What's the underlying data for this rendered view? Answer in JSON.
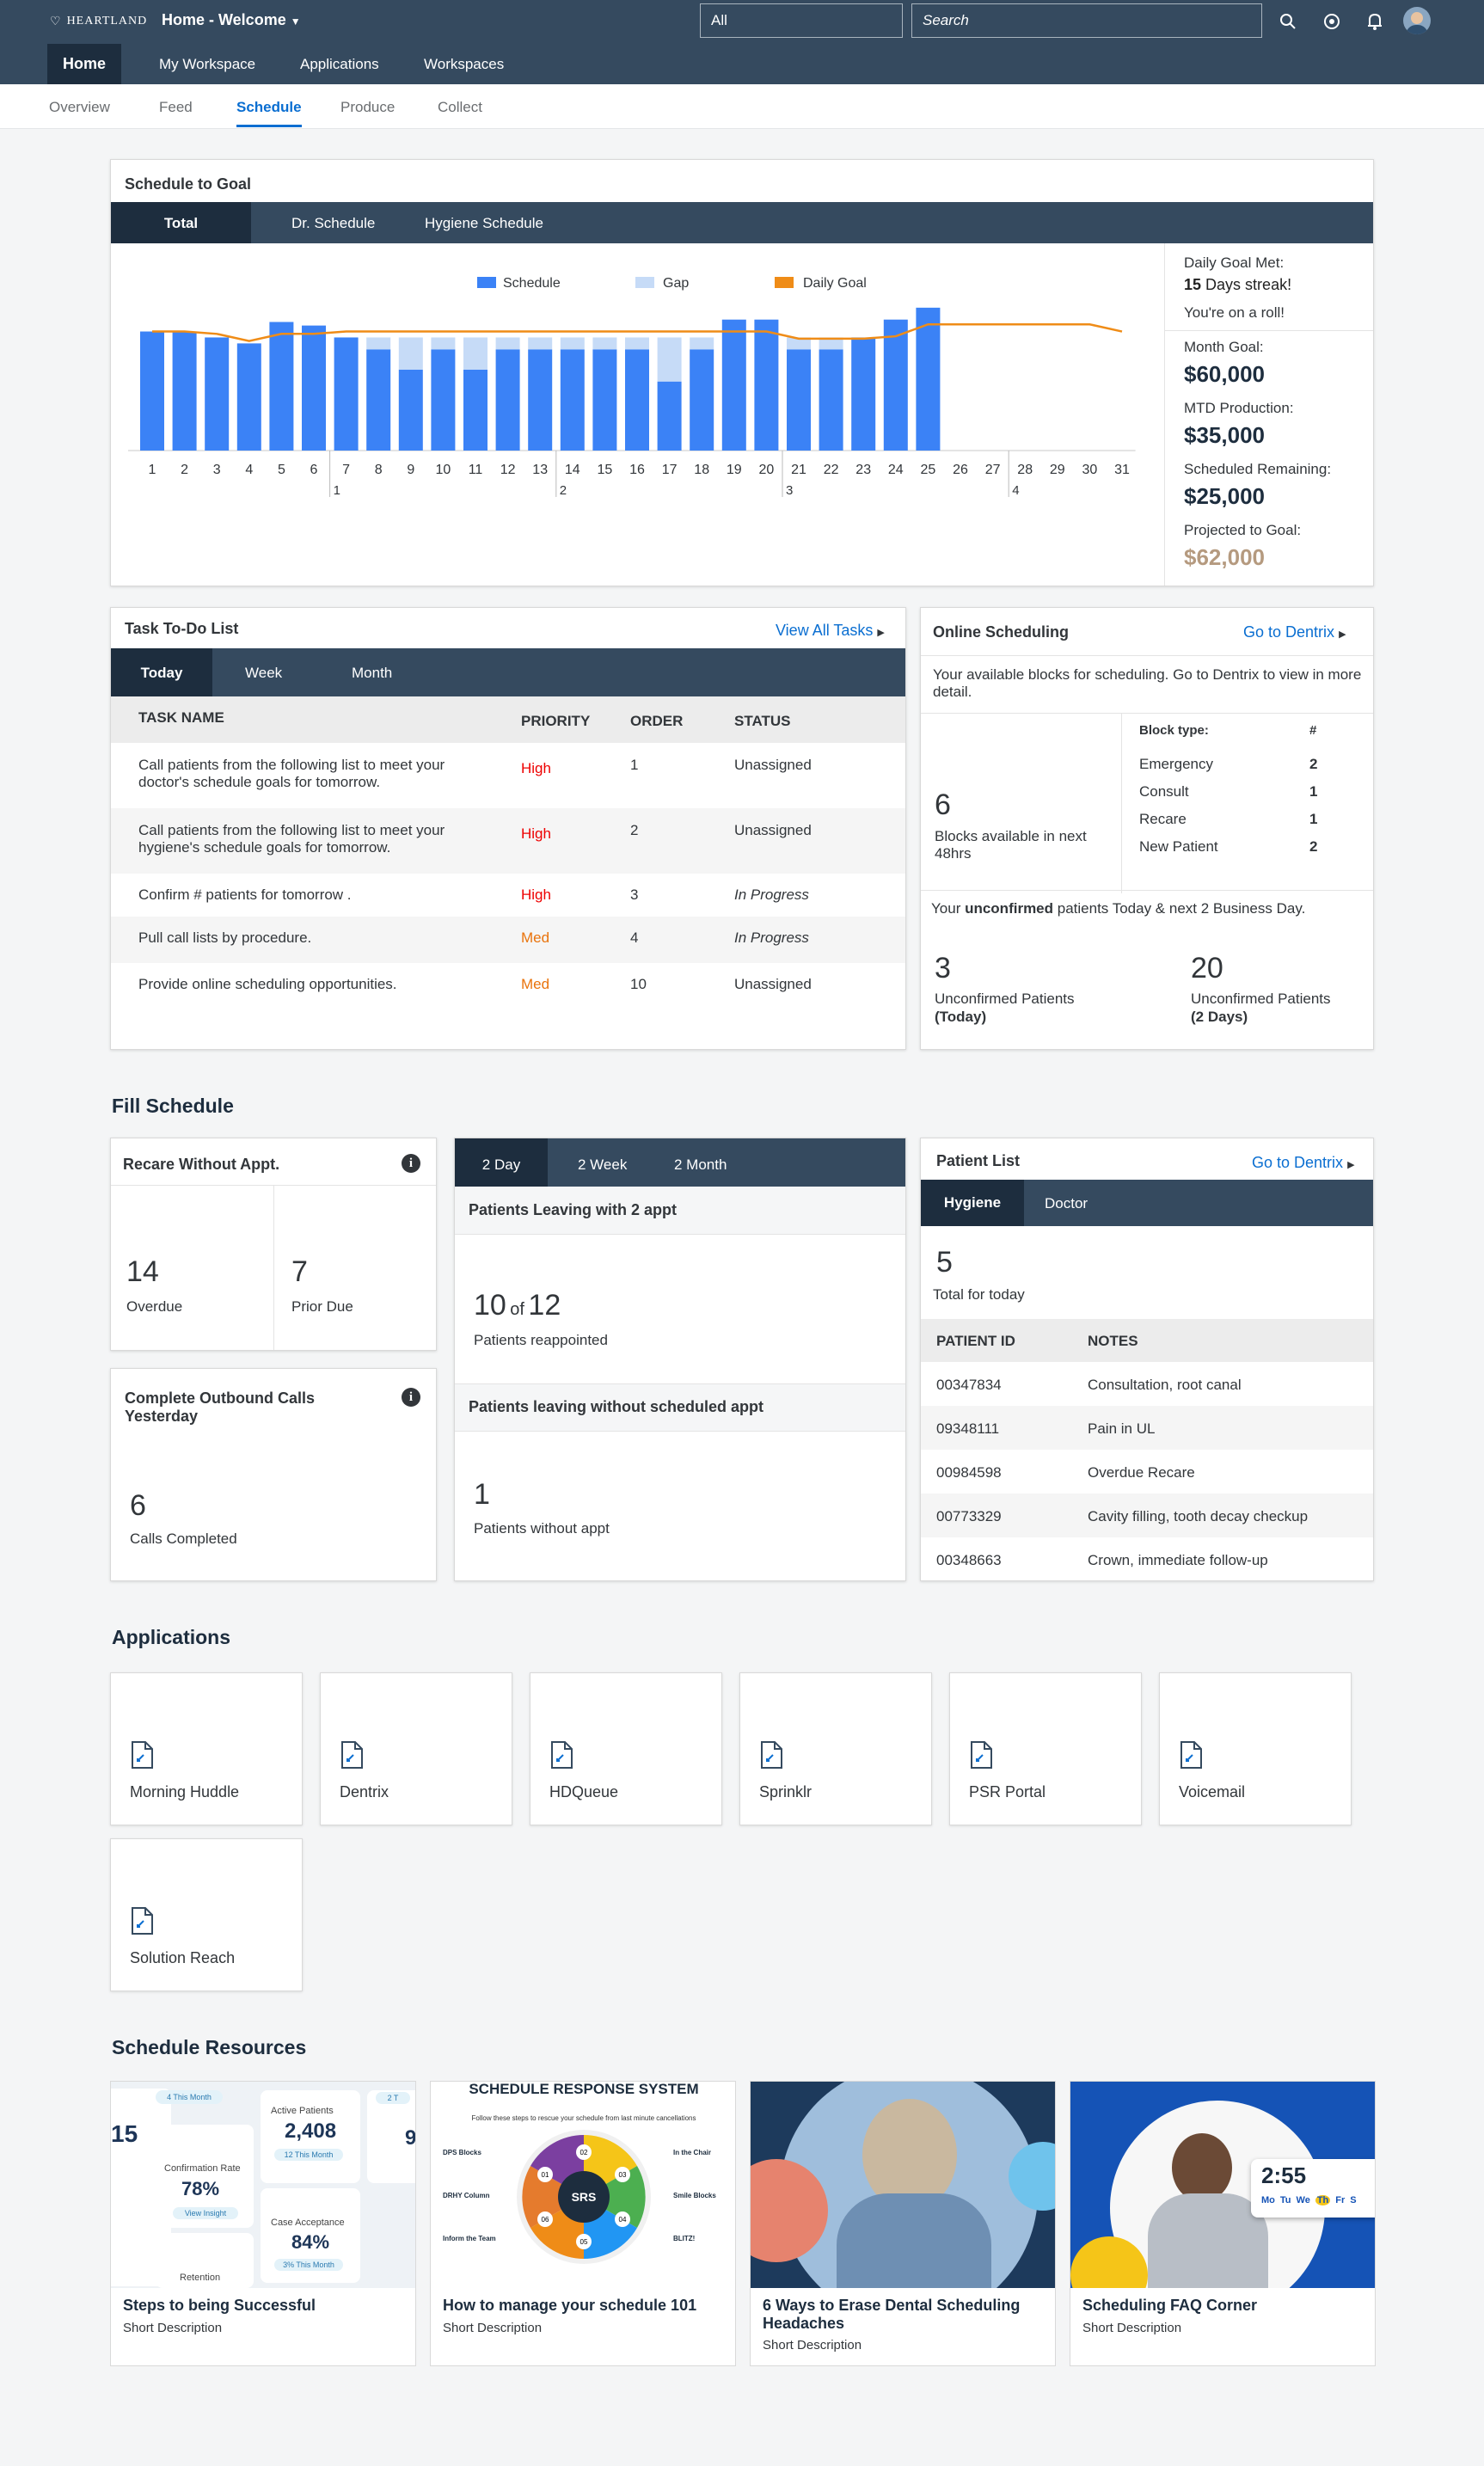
{
  "shell": {
    "logo": "HEARTLAND",
    "title": "Home - Welcome",
    "select": "All",
    "search_placeholder": "Search"
  },
  "nav": {
    "items": [
      "Home",
      "My Workspace",
      "Applications",
      "Workspaces"
    ]
  },
  "subnav": {
    "items": [
      "Overview",
      "Feed",
      "Schedule",
      "Produce",
      "Collect"
    ]
  },
  "goal": {
    "title": "Schedule to Goal",
    "tabs": [
      "Total",
      "Dr. Schedule",
      "Hygiene Schedule"
    ],
    "side": {
      "daily_label": "Daily Goal Met:",
      "streak_num": "15",
      "streak_text": "Days streak!",
      "roll": "You're on a roll!",
      "month_label": "Month Goal:",
      "month_val": "$60,000",
      "mtd_label": "MTD Production:",
      "mtd_val": "$35,000",
      "rem_label": "Scheduled Remaining:",
      "rem_val": "$25,000",
      "proj_label": "Projected to Goal:",
      "proj_val": "$62,000"
    }
  },
  "colors": {
    "schedule": "#3b82f6",
    "gap": "#c6dbf7",
    "goal": "#ef8c17",
    "shell": "#354a5f"
  },
  "chart_data": {
    "type": "bar",
    "title": "Schedule to Goal",
    "legend": [
      "Schedule",
      "Gap",
      "Daily Goal"
    ],
    "categories": [
      "1",
      "2",
      "3",
      "4",
      "5",
      "6",
      "7",
      "8",
      "9",
      "10",
      "11",
      "12",
      "13",
      "14",
      "15",
      "16",
      "17",
      "18",
      "19",
      "20",
      "21",
      "22",
      "23",
      "24",
      "25",
      "26",
      "27",
      "28",
      "29",
      "30",
      "31"
    ],
    "week_labels": [
      "1",
      "2",
      "3",
      "4"
    ],
    "series": [
      {
        "name": "Schedule",
        "values": [
          100,
          100,
          95,
          90,
          108,
          105,
          95,
          85,
          68,
          85,
          68,
          85,
          85,
          85,
          85,
          85,
          58,
          85,
          110,
          110,
          85,
          85,
          95,
          110,
          120,
          null,
          null,
          null,
          null,
          null,
          null
        ]
      },
      {
        "name": "Gap",
        "values": [
          0,
          0,
          0,
          0,
          0,
          0,
          0,
          10,
          27,
          10,
          27,
          10,
          10,
          10,
          10,
          10,
          37,
          10,
          0,
          0,
          10,
          10,
          0,
          0,
          0,
          null,
          null,
          null,
          null,
          null,
          null
        ]
      },
      {
        "name": "Daily Goal",
        "values": [
          100,
          100,
          98,
          92,
          98,
          98,
          100,
          100,
          100,
          100,
          100,
          100,
          100,
          100,
          100,
          100,
          100,
          100,
          100,
          100,
          94,
          94,
          94,
          96,
          106,
          106,
          106,
          106,
          106,
          106,
          100
        ]
      }
    ],
    "ylim": [
      0,
      130
    ]
  },
  "tasks": {
    "title": "Task To-Do List",
    "view_all": "View All Tasks",
    "tabs": [
      "Today",
      "Week",
      "Month"
    ],
    "headers": [
      "TASK NAME",
      "PRIORITY",
      "ORDER",
      "STATUS"
    ],
    "rows": [
      {
        "name": "Call patients from the following list to meet your doctor's schedule goals for tomorrow.",
        "priority": "High",
        "order": "1",
        "status": "Unassigned"
      },
      {
        "name": "Call patients from the following list to meet your hygiene's schedule goals for tomorrow.",
        "priority": "High",
        "order": "2",
        "status": "Unassigned"
      },
      {
        "name": "Confirm # patients for tomorrow .",
        "priority": "High",
        "order": "3",
        "status": "In Progress"
      },
      {
        "name": "Pull call lists by procedure.",
        "priority": "Med",
        "order": "4",
        "status": "In Progress"
      },
      {
        "name": "Provide online scheduling opportunities.",
        "priority": "Med",
        "order": "10",
        "status": "Unassigned"
      }
    ]
  },
  "online": {
    "title": "Online Scheduling",
    "link": "Go to Dentrix",
    "desc": "Your available blocks for scheduling. Go to Dentrix to view in more detail.",
    "blocks_num": "6",
    "blocks_label": "Blocks available in next 48hrs",
    "block_type": "Block type:",
    "hash": "#",
    "types": [
      {
        "name": "Emergency",
        "count": "2"
      },
      {
        "name": "Consult",
        "count": "1"
      },
      {
        "name": "Recare",
        "count": "1"
      },
      {
        "name": "New Patient",
        "count": "2"
      }
    ],
    "unconf_a": "Your ",
    "unconf_b": "unconfirmed",
    "unconf_c": " patients Today & next 2 Business Day.",
    "today_num": "3",
    "today_label": "Unconfirmed Patients",
    "today_sub": "(Today)",
    "two_num": "20",
    "two_label": "Unconfirmed Patients",
    "two_sub": "(2 Days)"
  },
  "fill": {
    "title": "Fill Schedule",
    "recare": {
      "title": "Recare Without Appt.",
      "overdue_num": "14",
      "overdue": "Overdue",
      "prior_num": "7",
      "prior": "Prior Due"
    },
    "calls": {
      "title": "Complete Outbound Calls Yesterday",
      "num": "6",
      "label": "Calls Completed"
    },
    "leaving": {
      "tabs": [
        "2 Day",
        "2 Week",
        "2 Month"
      ],
      "h1": "Patients Leaving with 2 appt",
      "n1": "10",
      "of": "of",
      "n2": "12",
      "l1": "Patients reappointed",
      "h2": "Patients leaving without scheduled appt",
      "n3": "1",
      "l2": "Patients without appt"
    },
    "patients": {
      "title": "Patient List",
      "link": "Go to Dentrix",
      "tabs": [
        "Hygiene",
        "Doctor"
      ],
      "num": "5",
      "total": "Total for today",
      "headers": [
        "PATIENT ID",
        "NOTES"
      ],
      "rows": [
        {
          "id": "00347834",
          "note": "Consultation, root canal"
        },
        {
          "id": "09348111",
          "note": "Pain in UL"
        },
        {
          "id": "00984598",
          "note": "Overdue Recare"
        },
        {
          "id": "00773329",
          "note": "Cavity filling, tooth decay checkup"
        },
        {
          "id": "00348663",
          "note": "Crown, immediate follow-up"
        }
      ]
    }
  },
  "apps": {
    "title": "Applications",
    "items": [
      "Morning Huddle",
      "Dentrix",
      "HDQueue",
      "Sprinklr",
      "PSR Portal",
      "Voicemail",
      "Solution Reach"
    ]
  },
  "resources": {
    "title": "Schedule Resources",
    "items": [
      {
        "title": "Steps to being Successful",
        "desc": "Short Description"
      },
      {
        "title": "How to manage your schedule 101",
        "desc": "Short Description"
      },
      {
        "title": "6 Ways to Erase Dental Scheduling Headaches",
        "desc": "Short Description"
      },
      {
        "title": "Scheduling FAQ Corner",
        "desc": "Short Description"
      }
    ],
    "img1": {
      "a": "4 This Month",
      "b": "Active Patients",
      "c": "2,408",
      "d": "12 This Month",
      "e": "Confirmation Rate",
      "f": "78%",
      "g": "View Insight",
      "h": "Case Acceptance",
      "i": "84%",
      "j": "3% This Month",
      "k": "Retention",
      "l": "15",
      "m": "2 T",
      "n": "9"
    },
    "img2": {
      "title": "SCHEDULE RESPONSE SYSTEM",
      "sub": "Follow these steps to rescue your schedule from last minute cancellations",
      "center": "SRS",
      "s1": "01",
      "s2": "02",
      "s3": "03",
      "s4": "04",
      "s5": "05",
      "s6": "06",
      "l1": "DPS Blocks",
      "l2": "DRHY Column",
      "l3": "Inform the Team",
      "l4": "In the Chair",
      "l5": "Smile Blocks",
      "l6": "BLITZ!"
    },
    "img4": {
      "time": "2:55",
      "days": [
        "Mo",
        "Tu",
        "We",
        "Th",
        "Fr",
        "S"
      ]
    }
  }
}
